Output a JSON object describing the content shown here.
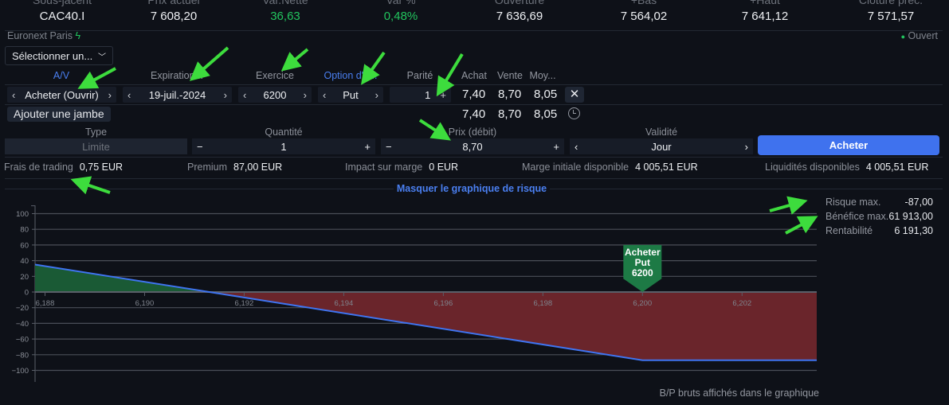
{
  "header": {
    "columns": [
      {
        "label": "Sous-jacent",
        "value": "CAC40.I"
      },
      {
        "label": "Prix actuel",
        "value": "7 608,20"
      },
      {
        "label": "Var.Nette",
        "value": "36,63"
      },
      {
        "label": "Var %",
        "value": "0,48%"
      },
      {
        "label": "Ouverture",
        "value": "7 636,69"
      },
      {
        "label": "+Bas",
        "value": "7 564,02"
      },
      {
        "label": "+Haut",
        "value": "7 641,12"
      },
      {
        "label": "Clôture préc.",
        "value": "7 571,57"
      }
    ]
  },
  "exchange": "Euronext Paris",
  "market_status": "Ouvert",
  "strategy_select": "Sélectionner un...",
  "leg_headers": {
    "side": "A/V",
    "expiration": "Expiration...",
    "strike": "Exercice",
    "option_type": "Option d'a...",
    "ratio": "Parité",
    "bid": "Achat",
    "ask": "Vente",
    "mid": "Moy..."
  },
  "leg": {
    "side": "Acheter (Ouvrir)",
    "expiration": "19-juil.-2024",
    "strike": "6200",
    "option_type": "Put",
    "ratio": "1",
    "bid": "7,40",
    "ask": "8,70",
    "mid": "8,05"
  },
  "totals": {
    "bid": "7,40",
    "ask": "8,70",
    "mid": "8,05"
  },
  "add_leg": "Ajouter une jambe",
  "order": {
    "type_label": "Type",
    "type_value": "Limite",
    "qty_label": "Quantité",
    "qty_value": "1",
    "price_label": "Prix (débit)",
    "price_value": "8,70",
    "validity_label": "Validité",
    "validity_value": "Jour",
    "submit": "Acheter"
  },
  "info": [
    {
      "label": "Frais de trading",
      "value": "0,75 EUR"
    },
    {
      "label": "Premium",
      "value": "87,00 EUR"
    },
    {
      "label": "Impact sur marge",
      "value": "0 EUR"
    },
    {
      "label": "Marge initiale disponible",
      "value": "4 005,51 EUR"
    },
    {
      "label": "Liquidités disponibles",
      "value": "4 005,51 EUR"
    }
  ],
  "toggle_chart": "Masquer le graphique de risque",
  "stats": [
    {
      "label": "Risque max.",
      "value": "-87,00"
    },
    {
      "label": "Bénéfice max.",
      "value": "61 913,00"
    },
    {
      "label": "Rentabilité",
      "value": "6 191,30"
    }
  ],
  "footer_note": "B/P bruts affichés dans le graphique",
  "colors": {
    "accent": "#4a7ff0",
    "positive": "#22c55e",
    "profit_fill": "#1a5a35",
    "loss_fill": "#6a252b",
    "line": "#3f74f0"
  },
  "chart_data": {
    "type": "area",
    "title": "",
    "xlabel": "",
    "ylabel": "",
    "x": [
      6187.8,
      6191.3,
      6200,
      6203.5
    ],
    "y": [
      35,
      0,
      -87,
      -87
    ],
    "xlim": [
      6187.8,
      6203.5
    ],
    "ylim": [
      -110,
      110
    ],
    "xticks": [
      6188,
      6190,
      6192,
      6194,
      6196,
      6198,
      6200,
      6202
    ],
    "xtick_labels": [
      "6,188",
      "6,190",
      "6,192",
      "6,194",
      "6,196",
      "6,198",
      "6,200",
      "6,202"
    ],
    "yticks": [
      100,
      80,
      60,
      40,
      20,
      0,
      -20,
      -40,
      -60,
      -80,
      -100
    ],
    "ytick_labels": [
      "100",
      "80",
      "60",
      "40",
      "20",
      "0",
      "−20",
      "−40",
      "−60",
      "−80",
      "−100"
    ],
    "grid": true,
    "marker": {
      "strike": 6200,
      "lines": [
        "Acheter",
        "Put",
        "6200"
      ]
    }
  }
}
